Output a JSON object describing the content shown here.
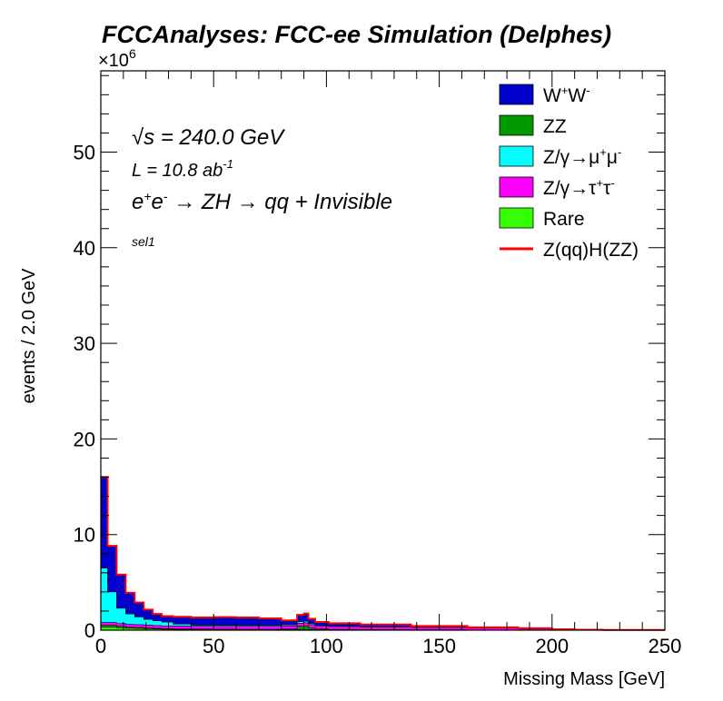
{
  "chart_data": {
    "type": "area",
    "title": "FCCAnalyses: FCC-ee Simulation (Delphes)",
    "xlabel": "Missing Mass [GeV]",
    "ylabel": "events / 2.0 GeV",
    "y_multiplier_base": "×10",
    "y_multiplier_exp": "6",
    "xlim": [
      0,
      250
    ],
    "ylim": [
      0,
      58.5
    ],
    "x_ticks": [
      "0",
      "50",
      "100",
      "150",
      "200",
      "250"
    ],
    "y_ticks": [
      "0",
      "10",
      "20",
      "30",
      "40",
      "50"
    ],
    "stacked": true,
    "x": [
      1,
      5,
      9,
      13,
      17,
      21,
      25,
      29,
      35,
      45,
      55,
      65,
      75,
      85,
      89,
      91,
      93,
      97,
      105,
      125,
      150,
      175,
      195,
      205,
      215,
      230,
      249
    ],
    "series": [
      {
        "name": "Rare",
        "color": "#33ff00",
        "values": [
          0.3,
          0.3,
          0.25,
          0.2,
          0.18,
          0.15,
          0.12,
          0.1,
          0.08,
          0.07,
          0.06,
          0.05,
          0.05,
          0.05,
          0.06,
          0.06,
          0.05,
          0.04,
          0.03,
          0.02,
          0.02,
          0.01,
          0.01,
          0.0,
          0.0,
          0.0,
          0.0
        ]
      },
      {
        "name": "ZZ",
        "color": "#009900",
        "values": [
          0.2,
          0.2,
          0.15,
          0.1,
          0.1,
          0.08,
          0.06,
          0.05,
          0.05,
          0.04,
          0.04,
          0.04,
          0.04,
          0.08,
          0.35,
          0.4,
          0.2,
          0.08,
          0.05,
          0.03,
          0.02,
          0.01,
          0.01,
          0.0,
          0.0,
          0.0,
          0.0
        ]
      },
      {
        "name": "Z/γ→τ⁺τ⁻",
        "color": "#ff00ff",
        "values": [
          0.3,
          0.3,
          0.3,
          0.3,
          0.3,
          0.3,
          0.3,
          0.3,
          0.3,
          0.3,
          0.3,
          0.32,
          0.32,
          0.32,
          0.32,
          0.32,
          0.32,
          0.32,
          0.3,
          0.28,
          0.25,
          0.2,
          0.12,
          0.05,
          0.02,
          0.0,
          0.0
        ]
      },
      {
        "name": "Z/γ→μ⁺μ⁻",
        "color": "#00ffff",
        "values": [
          5.7,
          3.2,
          1.6,
          1.1,
          0.8,
          0.6,
          0.5,
          0.4,
          0.2,
          0.1,
          0.1,
          0.1,
          0.1,
          0.1,
          0.15,
          0.15,
          0.1,
          0.05,
          0.05,
          0.02,
          0.01,
          0.0,
          0.0,
          0.0,
          0.0,
          0.0,
          0.0
        ]
      },
      {
        "name": "W⁺W⁻",
        "color": "#0000cc",
        "values": [
          9.5,
          4.8,
          3.5,
          2.2,
          1.5,
          1.0,
          0.7,
          0.6,
          0.75,
          0.8,
          0.85,
          0.8,
          0.7,
          0.45,
          0.7,
          0.8,
          0.5,
          0.35,
          0.28,
          0.22,
          0.12,
          0.06,
          0.04,
          0.02,
          0.01,
          0.0,
          0.0
        ]
      }
    ],
    "signal": {
      "name": "Z(qq)H(ZZ)",
      "color": "#ff0000",
      "values": [
        0.02,
        0.02,
        0.02,
        0.02,
        0.02,
        0.02,
        0.02,
        0.02,
        0.02,
        0.02,
        0.02,
        0.02,
        0.02,
        0.02,
        0.02,
        0.02,
        0.02,
        0.02,
        0.02,
        0.02,
        0.02,
        0.02,
        0.02,
        0.02,
        0.02,
        0.02,
        0.02
      ]
    },
    "legend": [
      {
        "label": "W",
        "sup1": "+",
        "label2": "W",
        "sup2": "-",
        "color": "#0000cc",
        "kind": "box"
      },
      {
        "label": "ZZ",
        "color": "#009900",
        "kind": "box"
      },
      {
        "label": "Z/γ→μ",
        "sup1": "+",
        "label2": "μ",
        "sup2": "-",
        "color": "#00ffff",
        "kind": "box"
      },
      {
        "label": "Z/γ→τ",
        "sup1": "+",
        "label2": "τ",
        "sup2": "-",
        "color": "#ff00ff",
        "kind": "box"
      },
      {
        "label": "Rare",
        "color": "#33ff00",
        "kind": "box"
      },
      {
        "label": "Z(qq)H(ZZ)",
        "color": "#ff0000",
        "kind": "line"
      }
    ],
    "legend_position": "top-right",
    "annotations": {
      "sqrt": "√",
      "s_text": "s = 240.0 GeV",
      "lumi": "L = 10.8 ab",
      "lumi_exp": "-1",
      "process_parts": [
        "e",
        "+",
        "e",
        "-",
        " → ZH → qq + Invisible"
      ],
      "selection": "sel1"
    }
  }
}
